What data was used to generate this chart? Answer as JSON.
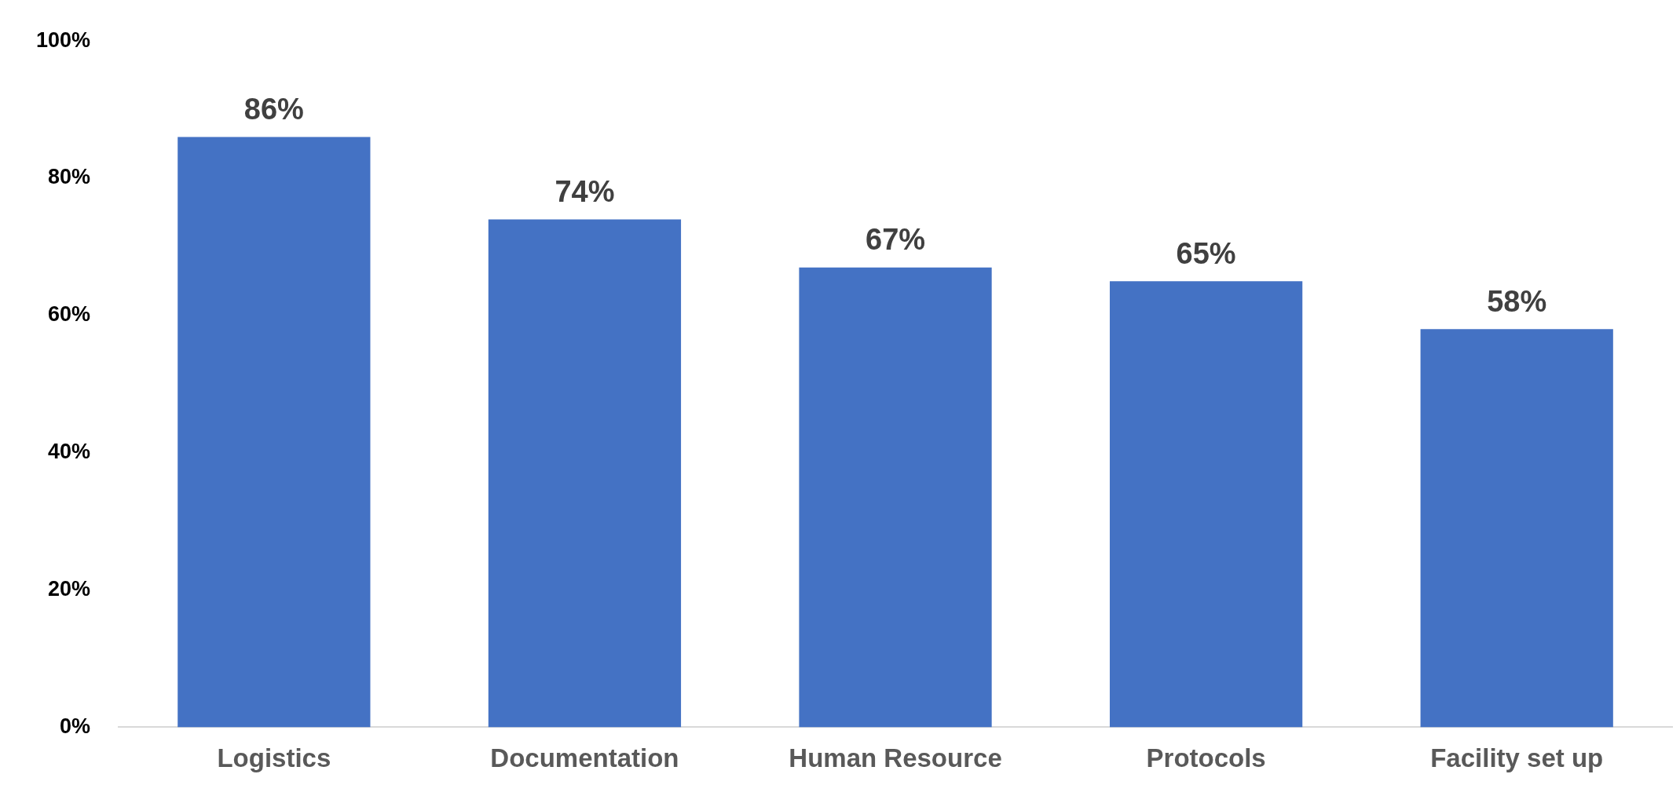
{
  "chart_data": {
    "type": "bar",
    "categories": [
      "Logistics",
      "Documentation",
      "Human Resource",
      "Protocols",
      "Facility set up"
    ],
    "values": [
      86,
      74,
      67,
      65,
      58
    ],
    "color": "#4472c4",
    "value_labels": [
      "86%",
      "74%",
      "67%",
      "65%",
      "58%"
    ],
    "ylim": [
      0,
      100
    ],
    "yticks": [
      {
        "value": 0,
        "label": "0%"
      },
      {
        "value": 20,
        "label": "20%"
      },
      {
        "value": 40,
        "label": "40%"
      },
      {
        "value": 60,
        "label": "60%"
      },
      {
        "value": 80,
        "label": "80%"
      },
      {
        "value": 100,
        "label": "100%"
      }
    ],
    "grid": false,
    "legend": false
  }
}
